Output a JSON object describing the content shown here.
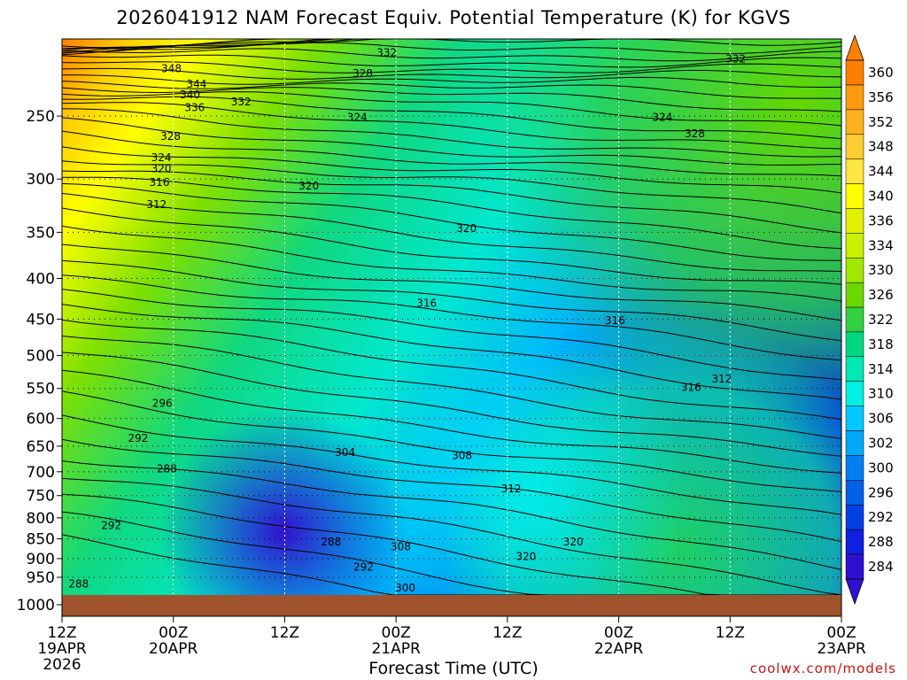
{
  "chart_data": {
    "type": "heatmap",
    "title": "2026041912 NAM Forecast Equiv. Potential Temperature (K) for KGVS",
    "xlabel": "Forecast Time (UTC)",
    "credit": "coolwx.com/models",
    "x_ticks": [
      {
        "hour": 0,
        "label": "12Z",
        "sub": "19APR",
        "sub2": "2026"
      },
      {
        "hour": 12,
        "label": "00Z",
        "sub": "20APR",
        "sub2": ""
      },
      {
        "hour": 24,
        "label": "12Z",
        "sub": "",
        "sub2": ""
      },
      {
        "hour": 36,
        "label": "00Z",
        "sub": "21APR",
        "sub2": ""
      },
      {
        "hour": 48,
        "label": "12Z",
        "sub": "",
        "sub2": ""
      },
      {
        "hour": 60,
        "label": "00Z",
        "sub": "22APR",
        "sub2": ""
      },
      {
        "hour": 72,
        "label": "12Z",
        "sub": "",
        "sub2": ""
      },
      {
        "hour": 84,
        "label": "00Z",
        "sub": "23APR",
        "sub2": ""
      }
    ],
    "y_ticks": [
      250,
      300,
      350,
      400,
      450,
      500,
      550,
      600,
      650,
      700,
      750,
      800,
      850,
      900,
      950,
      1000
    ],
    "ylim": [
      200,
      1000
    ],
    "y_scale": "log",
    "colorbar": {
      "labels": [
        360,
        356,
        352,
        348,
        344,
        340,
        336,
        334,
        330,
        326,
        322,
        318,
        314,
        310,
        306,
        302,
        300,
        296,
        292,
        288,
        284
      ],
      "colors": [
        "#ff7f00",
        "#ff9a10",
        "#ffb020",
        "#ffcc33",
        "#ffe640",
        "#ffff00",
        "#e0f000",
        "#c8f000",
        "#a0e800",
        "#6ad800",
        "#30d040",
        "#00d880",
        "#00e8b4",
        "#00f0e4",
        "#00c8ff",
        "#00a8f8",
        "#0080f0",
        "#0060e8",
        "#0040e0",
        "#1020e0",
        "#3010d0"
      ]
    },
    "grid": true,
    "contour_labels": [
      {
        "hour": 11.8,
        "p": 218,
        "v": "348"
      },
      {
        "hour": 14.5,
        "p": 228,
        "v": "344"
      },
      {
        "hour": 13.8,
        "p": 235,
        "v": "340"
      },
      {
        "hour": 14.3,
        "p": 244,
        "v": "336"
      },
      {
        "hour": 19.3,
        "p": 240,
        "v": "332"
      },
      {
        "hour": 11.7,
        "p": 265,
        "v": "328"
      },
      {
        "hour": 10.7,
        "p": 282,
        "v": "324"
      },
      {
        "hour": 10.7,
        "p": 291,
        "v": "320"
      },
      {
        "hour": 10.5,
        "p": 303,
        "v": "316"
      },
      {
        "hour": 10.2,
        "p": 323,
        "v": "312"
      },
      {
        "hour": 35.0,
        "p": 208,
        "v": "332"
      },
      {
        "hour": 32.4,
        "p": 221,
        "v": "328"
      },
      {
        "hour": 31.8,
        "p": 251,
        "v": "324"
      },
      {
        "hour": 26.6,
        "p": 306,
        "v": "320"
      },
      {
        "hour": 43.6,
        "p": 346,
        "v": "320"
      },
      {
        "hour": 72.6,
        "p": 212,
        "v": "332"
      },
      {
        "hour": 64.7,
        "p": 251,
        "v": "324"
      },
      {
        "hour": 68.2,
        "p": 263,
        "v": "328"
      },
      {
        "hour": 39.3,
        "p": 430,
        "v": "316"
      },
      {
        "hour": 59.6,
        "p": 452,
        "v": "316"
      },
      {
        "hour": 67.8,
        "p": 548,
        "v": "316"
      },
      {
        "hour": 71.1,
        "p": 535,
        "v": "312"
      },
      {
        "hour": 10.8,
        "p": 574,
        "v": "296"
      },
      {
        "hour": 8.2,
        "p": 635,
        "v": "292"
      },
      {
        "hour": 11.3,
        "p": 694,
        "v": "288"
      },
      {
        "hour": 30.5,
        "p": 662,
        "v": "304"
      },
      {
        "hour": 43.1,
        "p": 668,
        "v": "308"
      },
      {
        "hour": 48.4,
        "p": 735,
        "v": "312"
      },
      {
        "hour": 5.3,
        "p": 818,
        "v": "292"
      },
      {
        "hour": 29.0,
        "p": 858,
        "v": "288"
      },
      {
        "hour": 32.5,
        "p": 922,
        "v": "292"
      },
      {
        "hour": 1.8,
        "p": 968,
        "v": "288"
      },
      {
        "hour": 36.5,
        "p": 870,
        "v": "308"
      },
      {
        "hour": 50.0,
        "p": 894,
        "v": "320"
      },
      {
        "hour": 55.1,
        "p": 858,
        "v": "320"
      },
      {
        "hour": 37.0,
        "p": 980,
        "v": "300"
      }
    ]
  }
}
